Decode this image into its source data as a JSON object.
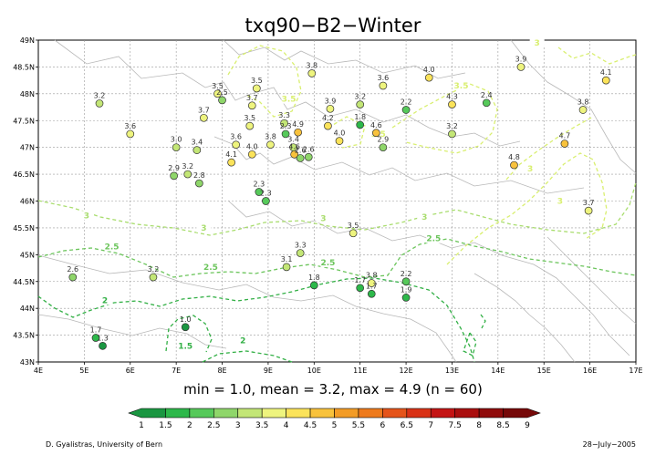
{
  "title": "txq90−B2−Winter",
  "summary": "min = 1.0, mean = 3.2, max = 4.9 (n = 60)",
  "credit_left": "D. Gyalistras, University of Bern",
  "credit_right": "28−July−2005",
  "map_extent": {
    "lon": [
      4,
      17
    ],
    "lat": [
      43,
      49
    ]
  },
  "x_ticks": [
    "4E",
    "5E",
    "6E",
    "7E",
    "8E",
    "9E",
    "10E",
    "11E",
    "12E",
    "13E",
    "14E",
    "15E",
    "16E",
    "17E"
  ],
  "y_ticks": [
    "43N",
    "43.5N",
    "44N",
    "44.5N",
    "45N",
    "45.5N",
    "46N",
    "46.5N",
    "47N",
    "47.5N",
    "48N",
    "48.5N",
    "49N"
  ],
  "colorbar": {
    "labels": [
      "1",
      "1.5",
      "2",
      "2.5",
      "3",
      "3.5",
      "4",
      "4.5",
      "5",
      "5.5",
      "6",
      "6.5",
      "7",
      "7.5",
      "8",
      "8.5",
      "9"
    ],
    "colors": [
      "#1a9641",
      "#2db84a",
      "#56c95a",
      "#8fd66a",
      "#c3e676",
      "#eef47e",
      "#fbe35a",
      "#f8c23c",
      "#f39c26",
      "#ee7a1c",
      "#e5541a",
      "#d93216",
      "#c41414",
      "#aa0f0f",
      "#900c0c",
      "#760909"
    ]
  },
  "contour_labels": [
    {
      "text": "1.5",
      "lon": 7.2,
      "lat": 43.25,
      "color": "#33b046"
    },
    {
      "text": "2",
      "lon": 5.45,
      "lat": 44.1,
      "color": "#33b046"
    },
    {
      "text": "2",
      "lon": 8.45,
      "lat": 43.35,
      "color": "#33b046"
    },
    {
      "text": "2.5",
      "lon": 5.6,
      "lat": 45.1,
      "color": "#6cc55c"
    },
    {
      "text": "2.5",
      "lon": 7.75,
      "lat": 44.72,
      "color": "#6cc55c"
    },
    {
      "text": "2.5",
      "lon": 10.3,
      "lat": 44.8,
      "color": "#6cc55c"
    },
    {
      "text": "2.5",
      "lon": 12.6,
      "lat": 45.25,
      "color": "#6cc55c"
    },
    {
      "text": "3",
      "lon": 5.05,
      "lat": 45.68,
      "color": "#a9dd6e"
    },
    {
      "text": "3",
      "lon": 7.6,
      "lat": 45.45,
      "color": "#a9dd6e"
    },
    {
      "text": "3",
      "lon": 10.2,
      "lat": 45.63,
      "color": "#a9dd6e"
    },
    {
      "text": "3",
      "lon": 12.4,
      "lat": 45.65,
      "color": "#a9dd6e"
    },
    {
      "text": "3.5",
      "lon": 9.45,
      "lat": 47.85,
      "color": "#d9ef70"
    },
    {
      "text": "3.5",
      "lon": 13.2,
      "lat": 48.1,
      "color": "#d9ef70"
    },
    {
      "text": "3.5",
      "lon": 11.4,
      "lat": 47.2,
      "color": "#d9ef70"
    },
    {
      "text": "3",
      "lon": 15.35,
      "lat": 45.95,
      "color": "#d9ef70"
    },
    {
      "text": "3",
      "lon": 14.85,
      "lat": 48.9,
      "color": "#d9ef70"
    },
    {
      "text": "3",
      "lon": 14.7,
      "lat": 46.55,
      "color": "#d9ef70"
    }
  ],
  "stations": [
    {
      "lon": 5.33,
      "lat": 47.82,
      "v": 3.2
    },
    {
      "lon": 6.0,
      "lat": 47.25,
      "v": 3.6
    },
    {
      "lon": 7.0,
      "lat": 47.0,
      "v": 3.0
    },
    {
      "lon": 7.45,
      "lat": 46.95,
      "v": 3.4
    },
    {
      "lon": 6.95,
      "lat": 46.47,
      "v": 2.9
    },
    {
      "lon": 7.25,
      "lat": 46.5,
      "v": 3.2
    },
    {
      "lon": 7.5,
      "lat": 46.33,
      "v": 2.8
    },
    {
      "lon": 7.6,
      "lat": 47.55,
      "v": 3.7
    },
    {
      "lon": 7.9,
      "lat": 48.0,
      "v": 3.5
    },
    {
      "lon": 8.0,
      "lat": 47.88,
      "v": 2.5
    },
    {
      "lon": 8.3,
      "lat": 47.05,
      "v": 3.6
    },
    {
      "lon": 8.2,
      "lat": 46.72,
      "v": 4.1
    },
    {
      "lon": 8.65,
      "lat": 46.87,
      "v": 4.0
    },
    {
      "lon": 8.6,
      "lat": 47.4,
      "v": 3.5
    },
    {
      "lon": 8.65,
      "lat": 47.78,
      "v": 3.7
    },
    {
      "lon": 8.75,
      "lat": 48.1,
      "v": 3.5
    },
    {
      "lon": 9.05,
      "lat": 47.05,
      "v": 3.8
    },
    {
      "lon": 9.35,
      "lat": 47.45,
      "v": 3.3
    },
    {
      "lon": 9.38,
      "lat": 47.25,
      "v": 2.3
    },
    {
      "lon": 9.55,
      "lat": 47.0,
      "v": 3.4
    },
    {
      "lon": 9.65,
      "lat": 47.28,
      "v": 4.9
    },
    {
      "lon": 9.57,
      "lat": 46.87,
      "v": 4.6
    },
    {
      "lon": 9.7,
      "lat": 46.8,
      "v": 2.6
    },
    {
      "lon": 9.88,
      "lat": 46.82,
      "v": 2.6
    },
    {
      "lon": 8.8,
      "lat": 46.17,
      "v": 2.3
    },
    {
      "lon": 8.95,
      "lat": 46.0,
      "v": 2.3
    },
    {
      "lon": 9.95,
      "lat": 48.38,
      "v": 3.8
    },
    {
      "lon": 10.3,
      "lat": 47.4,
      "v": 4.2
    },
    {
      "lon": 10.35,
      "lat": 47.72,
      "v": 3.9
    },
    {
      "lon": 10.55,
      "lat": 47.12,
      "v": 4.0
    },
    {
      "lon": 11.0,
      "lat": 47.42,
      "v": 1.8
    },
    {
      "lon": 11.0,
      "lat": 47.8,
      "v": 3.2
    },
    {
      "lon": 11.35,
      "lat": 47.27,
      "v": 4.6
    },
    {
      "lon": 11.5,
      "lat": 47.0,
      "v": 2.9
    },
    {
      "lon": 11.5,
      "lat": 48.15,
      "v": 3.6
    },
    {
      "lon": 12.0,
      "lat": 47.7,
      "v": 2.2
    },
    {
      "lon": 12.5,
      "lat": 48.3,
      "v": 4.0
    },
    {
      "lon": 13.0,
      "lat": 47.8,
      "v": 4.3
    },
    {
      "lon": 13.0,
      "lat": 47.25,
      "v": 3.2
    },
    {
      "lon": 13.75,
      "lat": 47.83,
      "v": 2.4
    },
    {
      "lon": 14.5,
      "lat": 48.5,
      "v": 3.9
    },
    {
      "lon": 14.35,
      "lat": 46.67,
      "v": 4.8
    },
    {
      "lon": 15.45,
      "lat": 47.07,
      "v": 4.7
    },
    {
      "lon": 15.85,
      "lat": 47.7,
      "v": 3.8
    },
    {
      "lon": 16.35,
      "lat": 48.25,
      "v": 4.1
    },
    {
      "lon": 15.97,
      "lat": 45.82,
      "v": 3.7
    },
    {
      "lon": 10.85,
      "lat": 45.4,
      "v": 3.5
    },
    {
      "lon": 9.7,
      "lat": 45.03,
      "v": 3.3
    },
    {
      "lon": 9.4,
      "lat": 44.77,
      "v": 3.1
    },
    {
      "lon": 10.0,
      "lat": 44.43,
      "v": 1.8
    },
    {
      "lon": 11.0,
      "lat": 44.38,
      "v": 1.7
    },
    {
      "lon": 11.25,
      "lat": 44.47,
      "v": 3.8
    },
    {
      "lon": 11.25,
      "lat": 44.27,
      "v": 1.7
    },
    {
      "lon": 12.0,
      "lat": 44.5,
      "v": 2.2
    },
    {
      "lon": 12.0,
      "lat": 44.2,
      "v": 1.9
    },
    {
      "lon": 6.5,
      "lat": 44.58,
      "v": 3.2
    },
    {
      "lon": 4.75,
      "lat": 44.58,
      "v": 2.6
    },
    {
      "lon": 5.25,
      "lat": 43.45,
      "v": 1.7
    },
    {
      "lon": 5.4,
      "lat": 43.3,
      "v": 1.3
    },
    {
      "lon": 7.2,
      "lat": 43.65,
      "v": 1.0
    }
  ]
}
